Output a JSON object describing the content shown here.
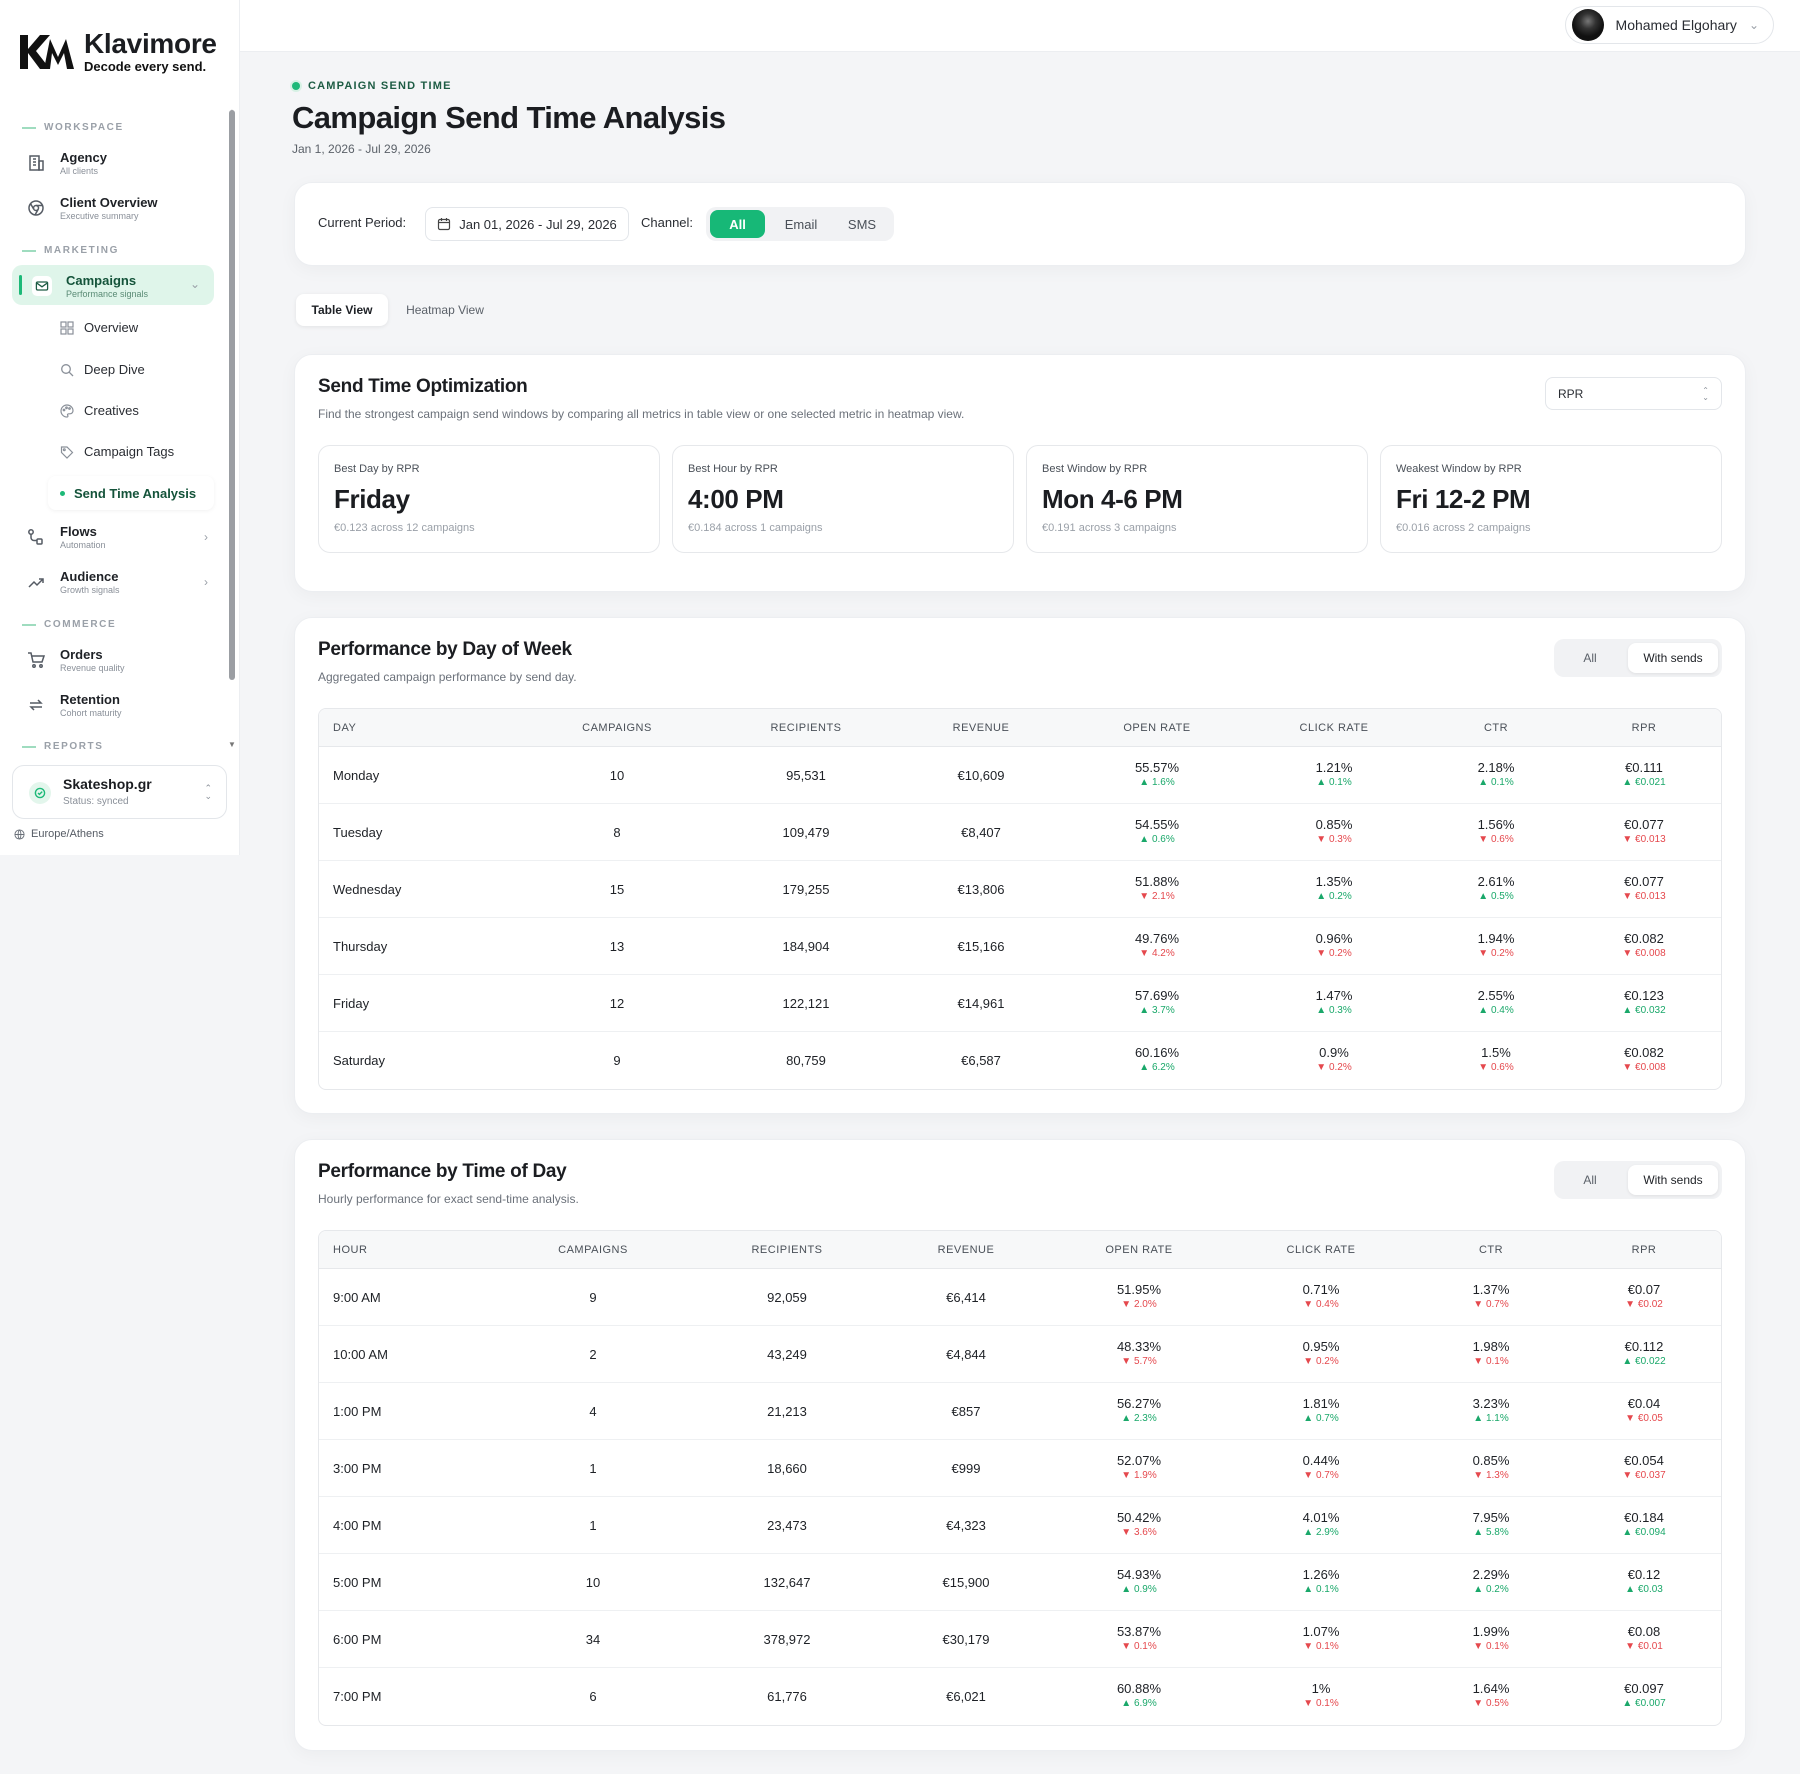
{
  "brand": {
    "name": "Klavimore",
    "tagline": "Decode every send."
  },
  "sidebar": {
    "sections": {
      "workspace": "WORKSPACE",
      "marketing": "MARKETING",
      "commerce": "COMMERCE",
      "reports": "REPORTS"
    },
    "items": [
      {
        "label": "Agency",
        "sub": "All clients"
      },
      {
        "label": "Client Overview",
        "sub": "Executive summary"
      },
      {
        "label": "Campaigns",
        "sub": "Performance signals"
      },
      {
        "label": "Flows",
        "sub": "Automation"
      },
      {
        "label": "Audience",
        "sub": "Growth signals"
      },
      {
        "label": "Orders",
        "sub": "Revenue quality"
      },
      {
        "label": "Retention",
        "sub": "Cohort maturity"
      }
    ],
    "campaign_sub": [
      "Overview",
      "Deep Dive",
      "Creatives",
      "Campaign Tags",
      "Send Time Analysis"
    ],
    "workspace": {
      "name": "Skateshop.gr",
      "status": "Status: synced"
    },
    "timezone": "Europe/Athens"
  },
  "topbar": {
    "user": "Mohamed Elgohary"
  },
  "page": {
    "eyebrow": "CAMPAIGN SEND TIME",
    "title": "Campaign Send Time Analysis",
    "range": "Jan 1, 2026 - Jul 29, 2026"
  },
  "filters": {
    "period_label": "Current Period:",
    "period_value": "Jan 01, 2026 - Jul 29, 2026",
    "channel_label": "Channel:",
    "channels": [
      "All",
      "Email",
      "SMS"
    ],
    "active_channel": "All"
  },
  "views": {
    "tabs": [
      "Table View",
      "Heatmap View"
    ],
    "active": "Table View"
  },
  "optimization": {
    "title": "Send Time Optimization",
    "subtitle": "Find the strongest campaign send windows by comparing all metrics in table view or one selected metric in heatmap view.",
    "metric_select": "RPR",
    "kpis": [
      {
        "label": "Best Day by RPR",
        "value": "Friday",
        "note": "€0.123 across 12 campaigns"
      },
      {
        "label": "Best Hour by RPR",
        "value": "4:00 PM",
        "note": "€0.184 across 1 campaigns"
      },
      {
        "label": "Best Window by RPR",
        "value": "Mon 4-6 PM",
        "note": "€0.191 across 3 campaigns"
      },
      {
        "label": "Weakest Window by RPR",
        "value": "Fri 12-2 PM",
        "note": "€0.016 across 2 campaigns"
      }
    ]
  },
  "day_table": {
    "title": "Performance by Day of Week",
    "subtitle": "Aggregated campaign performance by send day.",
    "toggle": [
      "All",
      "With sends"
    ],
    "toggle_active": "With sends",
    "headers": [
      "DAY",
      "CAMPAIGNS",
      "RECIPIENTS",
      "REVENUE",
      "OPEN RATE",
      "CLICK RATE",
      "CTR",
      "RPR"
    ],
    "rows": [
      {
        "key": "Monday",
        "campaigns": "10",
        "recipients": "95,531",
        "revenue": "€10,609",
        "open": {
          "v": "55.57%",
          "d": "1.6%",
          "dir": "up"
        },
        "click": {
          "v": "1.21%",
          "d": "0.1%",
          "dir": "up"
        },
        "ctr": {
          "v": "2.18%",
          "d": "0.1%",
          "dir": "up"
        },
        "rpr": {
          "v": "€0.111",
          "d": "€0.021",
          "dir": "up"
        }
      },
      {
        "key": "Tuesday",
        "campaigns": "8",
        "recipients": "109,479",
        "revenue": "€8,407",
        "open": {
          "v": "54.55%",
          "d": "0.6%",
          "dir": "up"
        },
        "click": {
          "v": "0.85%",
          "d": "0.3%",
          "dir": "down"
        },
        "ctr": {
          "v": "1.56%",
          "d": "0.6%",
          "dir": "down"
        },
        "rpr": {
          "v": "€0.077",
          "d": "€0.013",
          "dir": "down"
        }
      },
      {
        "key": "Wednesday",
        "campaigns": "15",
        "recipients": "179,255",
        "revenue": "€13,806",
        "open": {
          "v": "51.88%",
          "d": "2.1%",
          "dir": "down"
        },
        "click": {
          "v": "1.35%",
          "d": "0.2%",
          "dir": "up"
        },
        "ctr": {
          "v": "2.61%",
          "d": "0.5%",
          "dir": "up"
        },
        "rpr": {
          "v": "€0.077",
          "d": "€0.013",
          "dir": "down"
        }
      },
      {
        "key": "Thursday",
        "campaigns": "13",
        "recipients": "184,904",
        "revenue": "€15,166",
        "open": {
          "v": "49.76%",
          "d": "4.2%",
          "dir": "down"
        },
        "click": {
          "v": "0.96%",
          "d": "0.2%",
          "dir": "down"
        },
        "ctr": {
          "v": "1.94%",
          "d": "0.2%",
          "dir": "down"
        },
        "rpr": {
          "v": "€0.082",
          "d": "€0.008",
          "dir": "down"
        }
      },
      {
        "key": "Friday",
        "campaigns": "12",
        "recipients": "122,121",
        "revenue": "€14,961",
        "open": {
          "v": "57.69%",
          "d": "3.7%",
          "dir": "up"
        },
        "click": {
          "v": "1.47%",
          "d": "0.3%",
          "dir": "up"
        },
        "ctr": {
          "v": "2.55%",
          "d": "0.4%",
          "dir": "up"
        },
        "rpr": {
          "v": "€0.123",
          "d": "€0.032",
          "dir": "up"
        }
      },
      {
        "key": "Saturday",
        "campaigns": "9",
        "recipients": "80,759",
        "revenue": "€6,587",
        "open": {
          "v": "60.16%",
          "d": "6.2%",
          "dir": "up"
        },
        "click": {
          "v": "0.9%",
          "d": "0.2%",
          "dir": "down"
        },
        "ctr": {
          "v": "1.5%",
          "d": "0.6%",
          "dir": "down"
        },
        "rpr": {
          "v": "€0.082",
          "d": "€0.008",
          "dir": "down"
        }
      }
    ]
  },
  "hour_table": {
    "title": "Performance by Time of Day",
    "subtitle": "Hourly performance for exact send-time analysis.",
    "toggle": [
      "All",
      "With sends"
    ],
    "toggle_active": "With sends",
    "headers": [
      "HOUR",
      "CAMPAIGNS",
      "RECIPIENTS",
      "REVENUE",
      "OPEN RATE",
      "CLICK RATE",
      "CTR",
      "RPR"
    ],
    "rows": [
      {
        "key": "9:00 AM",
        "campaigns": "9",
        "recipients": "92,059",
        "revenue": "€6,414",
        "open": {
          "v": "51.95%",
          "d": "2.0%",
          "dir": "down"
        },
        "click": {
          "v": "0.71%",
          "d": "0.4%",
          "dir": "down"
        },
        "ctr": {
          "v": "1.37%",
          "d": "0.7%",
          "dir": "down"
        },
        "rpr": {
          "v": "€0.07",
          "d": "€0.02",
          "dir": "down"
        }
      },
      {
        "key": "10:00 AM",
        "campaigns": "2",
        "recipients": "43,249",
        "revenue": "€4,844",
        "open": {
          "v": "48.33%",
          "d": "5.7%",
          "dir": "down"
        },
        "click": {
          "v": "0.95%",
          "d": "0.2%",
          "dir": "down"
        },
        "ctr": {
          "v": "1.98%",
          "d": "0.1%",
          "dir": "down"
        },
        "rpr": {
          "v": "€0.112",
          "d": "€0.022",
          "dir": "up"
        }
      },
      {
        "key": "1:00 PM",
        "campaigns": "4",
        "recipients": "21,213",
        "revenue": "€857",
        "open": {
          "v": "56.27%",
          "d": "2.3%",
          "dir": "up"
        },
        "click": {
          "v": "1.81%",
          "d": "0.7%",
          "dir": "up"
        },
        "ctr": {
          "v": "3.23%",
          "d": "1.1%",
          "dir": "up"
        },
        "rpr": {
          "v": "€0.04",
          "d": "€0.05",
          "dir": "down"
        }
      },
      {
        "key": "3:00 PM",
        "campaigns": "1",
        "recipients": "18,660",
        "revenue": "€999",
        "open": {
          "v": "52.07%",
          "d": "1.9%",
          "dir": "down"
        },
        "click": {
          "v": "0.44%",
          "d": "0.7%",
          "dir": "down"
        },
        "ctr": {
          "v": "0.85%",
          "d": "1.3%",
          "dir": "down"
        },
        "rpr": {
          "v": "€0.054",
          "d": "€0.037",
          "dir": "down"
        }
      },
      {
        "key": "4:00 PM",
        "campaigns": "1",
        "recipients": "23,473",
        "revenue": "€4,323",
        "open": {
          "v": "50.42%",
          "d": "3.6%",
          "dir": "down"
        },
        "click": {
          "v": "4.01%",
          "d": "2.9%",
          "dir": "up"
        },
        "ctr": {
          "v": "7.95%",
          "d": "5.8%",
          "dir": "up"
        },
        "rpr": {
          "v": "€0.184",
          "d": "€0.094",
          "dir": "up"
        }
      },
      {
        "key": "5:00 PM",
        "campaigns": "10",
        "recipients": "132,647",
        "revenue": "€15,900",
        "open": {
          "v": "54.93%",
          "d": "0.9%",
          "dir": "up"
        },
        "click": {
          "v": "1.26%",
          "d": "0.1%",
          "dir": "up"
        },
        "ctr": {
          "v": "2.29%",
          "d": "0.2%",
          "dir": "up"
        },
        "rpr": {
          "v": "€0.12",
          "d": "€0.03",
          "dir": "up"
        }
      },
      {
        "key": "6:00 PM",
        "campaigns": "34",
        "recipients": "378,972",
        "revenue": "€30,179",
        "open": {
          "v": "53.87%",
          "d": "0.1%",
          "dir": "down"
        },
        "click": {
          "v": "1.07%",
          "d": "0.1%",
          "dir": "down"
        },
        "ctr": {
          "v": "1.99%",
          "d": "0.1%",
          "dir": "down"
        },
        "rpr": {
          "v": "€0.08",
          "d": "€0.01",
          "dir": "down"
        }
      },
      {
        "key": "7:00 PM",
        "campaigns": "6",
        "recipients": "61,776",
        "revenue": "€6,021",
        "open": {
          "v": "60.88%",
          "d": "6.9%",
          "dir": "up"
        },
        "click": {
          "v": "1%",
          "d": "0.1%",
          "dir": "down"
        },
        "ctr": {
          "v": "1.64%",
          "d": "0.5%",
          "dir": "down"
        },
        "rpr": {
          "v": "€0.097",
          "d": "€0.007",
          "dir": "up"
        }
      }
    ]
  },
  "colors": {
    "accent": "#1db978",
    "up": "#1aa86a",
    "down": "#e5484d"
  }
}
